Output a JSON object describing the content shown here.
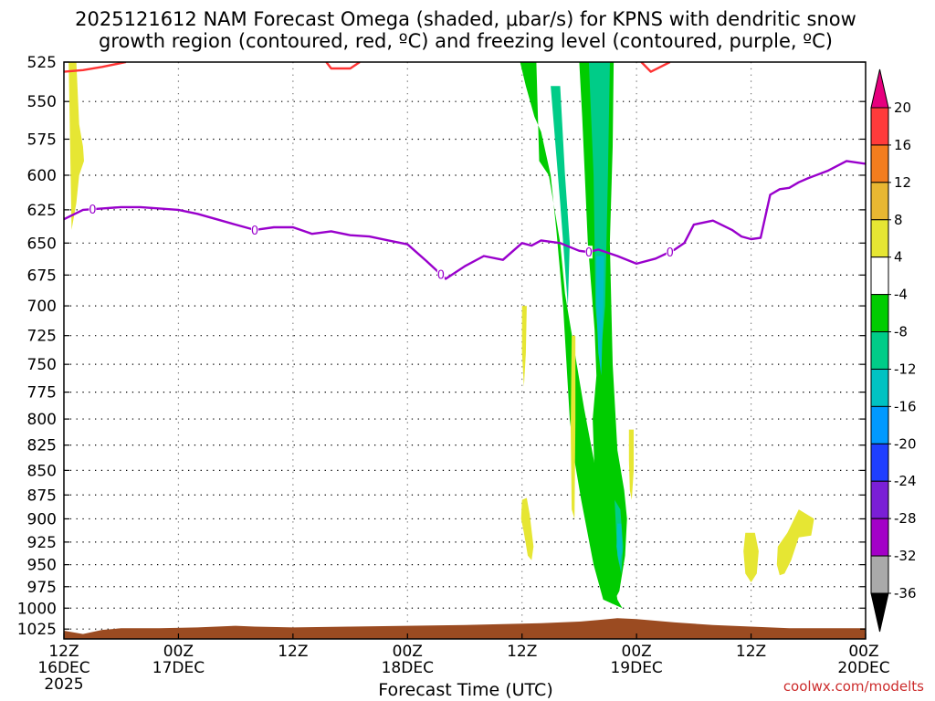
{
  "chart_data": {
    "type": "heatmap",
    "title_line1": "2025121612 NAM Forecast Omega (shaded, μbar/s) for KPNS with dendritic snow",
    "title_line2": "growth region (contoured, red, ºC) and freezing level (contoured, purple, ºC)",
    "xlabel": "Forecast Time (UTC)",
    "credit": "coolwx.com/modelts",
    "x_range_hours": [
      0,
      84
    ],
    "x_ticks": [
      {
        "hour": 0,
        "line1": "12Z",
        "line2": "16DEC",
        "line3": "2025"
      },
      {
        "hour": 12,
        "line1": "00Z",
        "line2": "17DEC",
        "line3": ""
      },
      {
        "hour": 24,
        "line1": "12Z",
        "line2": "",
        "line3": ""
      },
      {
        "hour": 36,
        "line1": "00Z",
        "line2": "18DEC",
        "line3": ""
      },
      {
        "hour": 48,
        "line1": "12Z",
        "line2": "",
        "line3": ""
      },
      {
        "hour": 60,
        "line1": "00Z",
        "line2": "19DEC",
        "line3": ""
      },
      {
        "hour": 72,
        "line1": "12Z",
        "line2": "",
        "line3": ""
      },
      {
        "hour": 84,
        "line1": "00Z",
        "line2": "20DEC",
        "line3": ""
      }
    ],
    "y_range_hpa": [
      525,
      1037
    ],
    "y_ticks": [
      525,
      550,
      575,
      600,
      625,
      650,
      675,
      700,
      725,
      750,
      775,
      800,
      825,
      850,
      875,
      900,
      925,
      950,
      975,
      1000,
      1025
    ],
    "colorbar": {
      "labels": [
        "20",
        "16",
        "12",
        "8",
        "4",
        "-4",
        "-8",
        "-12",
        "-16",
        "-20",
        "-24",
        "-28",
        "-32",
        "-36"
      ],
      "colors": [
        "#e6007e",
        "#ff3b3b",
        "#f37d1e",
        "#e8b732",
        "#e6e633",
        "#ffffff",
        "#00cc00",
        "#00cc88",
        "#00c2c2",
        "#0099ff",
        "#1f3fff",
        "#7a1fd6",
        "#a300c7",
        "#aaaaaa",
        "#000000"
      ]
    },
    "freezing_level": {
      "label": "0",
      "color": "#9900cc",
      "hours": [
        0,
        2,
        4,
        6,
        8,
        10,
        12,
        14,
        16,
        18,
        20,
        22,
        24,
        26,
        28,
        30,
        32,
        34,
        36,
        38,
        40,
        42,
        44,
        46,
        48,
        49,
        50,
        52,
        54,
        55,
        56,
        58,
        60,
        62,
        64,
        65,
        66,
        68,
        70,
        71,
        72,
        73,
        74,
        75,
        76,
        77,
        78,
        80,
        82,
        84
      ],
      "pressure": [
        632,
        625,
        624,
        623,
        623,
        624,
        625,
        628,
        632,
        636,
        640,
        638,
        638,
        643,
        641,
        644,
        645,
        648,
        651,
        664,
        678,
        668,
        660,
        663,
        650,
        652,
        648,
        650,
        656,
        657,
        655,
        660,
        666,
        662,
        655,
        650,
        636,
        633,
        640,
        645,
        647,
        646,
        614,
        610,
        609,
        605,
        602,
        597,
        590,
        592
      ]
    },
    "dgz_minus12_contour": {
      "color": "#ff3333",
      "segments": [
        {
          "hours": [
            0,
            2,
            4,
            6.5
          ],
          "pressure": [
            531,
            530,
            528,
            525
          ]
        },
        {
          "hours": [
            27.5,
            28,
            30,
            31
          ],
          "pressure": [
            525,
            529,
            529,
            525
          ]
        },
        {
          "hours": [
            60.5,
            61.5,
            62.5,
            63.5
          ],
          "pressure": [
            525,
            531,
            528,
            525
          ]
        }
      ]
    },
    "omega_regions": [
      {
        "value": 4,
        "hours": [
          0.5,
          1.3,
          1.6,
          2.0,
          2.1,
          1.6,
          1.3,
          0.8
        ],
        "pressure": [
          525,
          525,
          565,
          580,
          590,
          600,
          620,
          640
        ]
      },
      {
        "value": -4,
        "hours": [
          47.8,
          49.5,
          49.8,
          50.8,
          51.3,
          52.0,
          52.5,
          54.5,
          56.5,
          58.0,
          58.5,
          56.5,
          55.5,
          54.2,
          53.5,
          53.0,
          52.3,
          51.6,
          51.0,
          50.0,
          49.3,
          48.4
        ],
        "pressure": [
          525,
          525,
          590,
          600,
          620,
          650,
          690,
          790,
          890,
          990,
          1000,
          990,
          950,
          880,
          840,
          800,
          700,
          640,
          600,
          570,
          560,
          540
        ]
      },
      {
        "value": -4,
        "hours": [
          54.0,
          57.6,
          57.5,
          57.2,
          57.5,
          58.0,
          58.7,
          59.0,
          58.8,
          58.2,
          57.5,
          56.7,
          56.2,
          55.7,
          55.4,
          55.8,
          55.6,
          54.9,
          54.3
        ],
        "pressure": [
          525,
          525,
          580,
          650,
          750,
          830,
          870,
          900,
          940,
          980,
          995,
          990,
          960,
          880,
          800,
          760,
          720,
          650,
          560
        ]
      },
      {
        "value": -8,
        "hours": [
          51.0,
          52.0,
          52.5,
          53.0,
          52.8,
          52.0
        ],
        "pressure": [
          540,
          540,
          600,
          650,
          700,
          620
        ]
      },
      {
        "value": -8,
        "hours": [
          55.0,
          57.2,
          57.0,
          56.7,
          56.2,
          55.7,
          55.5
        ],
        "pressure": [
          525,
          525,
          600,
          700,
          750,
          700,
          600
        ]
      },
      {
        "value": -8,
        "hours": [
          57.7,
          58.3,
          58.6,
          58.4,
          58.0
        ],
        "pressure": [
          880,
          890,
          930,
          960,
          940
        ]
      },
      {
        "value": -12,
        "hours": [
          55.8,
          56.6,
          56.5,
          56.3,
          56.0,
          55.8
        ],
        "pressure": [
          660,
          660,
          700,
          760,
          740,
          700
        ]
      },
      {
        "value": -12,
        "hours": [
          58.0,
          58.4,
          58.5,
          58.2,
          57.9
        ],
        "pressure": [
          905,
          905,
          935,
          950,
          930
        ]
      },
      {
        "value": 4,
        "hours": [
          48.0,
          48.5,
          48.4,
          48.2,
          48.0
        ],
        "pressure": [
          700,
          700,
          740,
          770,
          740
        ]
      },
      {
        "value": 4,
        "hours": [
          48.0,
          48.5,
          48.8,
          49.2,
          49.0,
          48.6,
          48.2,
          47.9
        ],
        "pressure": [
          880,
          878,
          895,
          930,
          945,
          940,
          915,
          900
        ]
      },
      {
        "value": 4,
        "hours": [
          53.2,
          53.6,
          53.6,
          53.5,
          53.2,
          53.1
        ],
        "pressure": [
          725,
          725,
          800,
          900,
          890,
          810
        ]
      },
      {
        "value": 4,
        "hours": [
          59.2,
          59.7,
          59.7,
          59.5,
          59.3,
          59.2
        ],
        "pressure": [
          810,
          810,
          850,
          880,
          870,
          840
        ]
      },
      {
        "value": 4,
        "hours": [
          71.4,
          72.4,
          72.8,
          72.6,
          72.0,
          71.4,
          71.2
        ],
        "pressure": [
          915,
          915,
          935,
          960,
          970,
          960,
          935
        ]
      },
      {
        "value": 4,
        "hours": [
          74.8,
          75.8,
          77.0,
          78.6,
          78.3,
          77.0,
          76.2,
          75.5,
          75.0,
          74.7
        ],
        "pressure": [
          930,
          915,
          890,
          900,
          918,
          920,
          945,
          960,
          962,
          950
        ]
      }
    ],
    "surface_fill": {
      "color": "#9b4b21",
      "hours": [
        0,
        2,
        4,
        6,
        10,
        14,
        18,
        20,
        24,
        30,
        36,
        42,
        46,
        50,
        54,
        56,
        58,
        60,
        64,
        68,
        72,
        76,
        80,
        84
      ],
      "pressure": [
        1027,
        1031,
        1026,
        1024,
        1024,
        1023,
        1021,
        1022,
        1023,
        1022,
        1021,
        1020,
        1019,
        1018,
        1016,
        1014,
        1012,
        1013,
        1017,
        1020,
        1022,
        1024,
        1024,
        1024
      ]
    }
  }
}
